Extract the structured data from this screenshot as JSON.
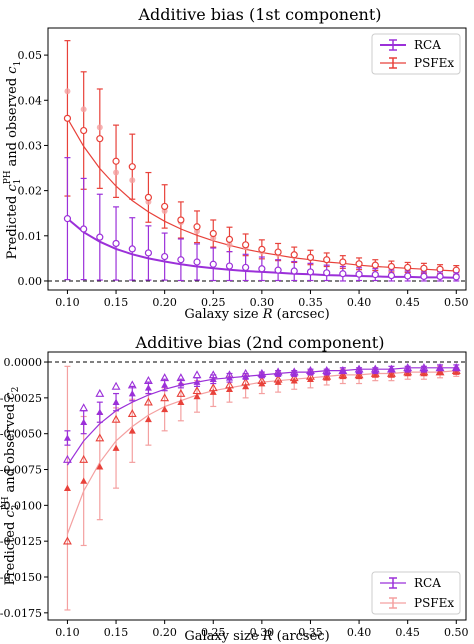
{
  "chart_data": [
    {
      "type": "scatter",
      "title": "Additive bias (1st component)",
      "xlabel": "Galaxy size R (arcsec)",
      "ylabel": "Predicted c1PH and observed c1",
      "xlim": [
        0.08,
        0.51
      ],
      "ylim": [
        -0.002,
        0.056
      ],
      "xticks": [
        "0.10",
        "0.15",
        "0.20",
        "0.25",
        "0.30",
        "0.35",
        "0.40",
        "0.45",
        "0.50"
      ],
      "yticks": [
        "0.00",
        "0.01",
        "0.02",
        "0.03",
        "0.04",
        "0.05"
      ],
      "legend": {
        "position": "top-right",
        "entries": [
          "RCA",
          "PSFEx"
        ]
      },
      "x": [
        0.1,
        0.1167,
        0.1333,
        0.15,
        0.1667,
        0.1833,
        0.2,
        0.2167,
        0.2333,
        0.25,
        0.2667,
        0.2833,
        0.3,
        0.3167,
        0.3333,
        0.35,
        0.3667,
        0.3833,
        0.4,
        0.4167,
        0.4333,
        0.45,
        0.4667,
        0.4833,
        0.5
      ],
      "series": [
        {
          "name": "RCA",
          "color": "#9b30d9",
          "predicted": [
            0.0138,
            0.0115,
            0.0097,
            0.0083,
            0.0071,
            0.0062,
            0.0054,
            0.0047,
            0.0042,
            0.0037,
            0.0033,
            0.003,
            0.0027,
            0.0024,
            0.0022,
            0.002,
            0.0018,
            0.0016,
            0.0015,
            0.0014,
            0.0012,
            0.0011,
            0.001,
            0.001,
            0.0009
          ],
          "error": [
            0.0135,
            0.0112,
            0.0095,
            0.0081,
            0.0069,
            0.006,
            0.0052,
            0.0046,
            0.004,
            0.0036,
            0.0032,
            0.0029,
            0.0026,
            0.0023,
            0.0021,
            0.0019,
            0.0017,
            0.0016,
            0.0014,
            0.0013,
            0.0012,
            0.0011,
            0.001,
            0.001,
            0.0009
          ],
          "observed": [
            0.004,
            0.0061,
            0.0063,
            0.0058,
            0.0042,
            0.004,
            0.0038,
            0.0033,
            0.0028,
            0.0026,
            0.0023,
            0.0022,
            0.002,
            0.0018,
            0.0017,
            0.0015,
            0.0014,
            0.0013,
            0.0012,
            0.0011,
            0.0011,
            0.001,
            0.0009,
            0.0009,
            0.0008
          ],
          "fit": [
            0.0138,
            0.0108,
            0.0087,
            0.0071,
            0.0059,
            0.005,
            0.0043,
            0.0037,
            0.0032,
            0.0028,
            0.0025,
            0.0022,
            0.002,
            0.0018,
            0.0016,
            0.0015,
            0.0013,
            0.0012,
            0.0011,
            0.001,
            0.0009,
            0.0009,
            0.0008,
            0.0008,
            0.0007
          ]
        },
        {
          "name": "PSFEx",
          "color": "#e8413a",
          "light_color": "#f4a0a0",
          "predicted": [
            0.036,
            0.0333,
            0.0315,
            0.0265,
            0.0253,
            0.0185,
            0.0165,
            0.0135,
            0.012,
            0.0105,
            0.0092,
            0.008,
            0.007,
            0.0064,
            0.0058,
            0.0052,
            0.0047,
            0.0042,
            0.0038,
            0.0035,
            0.0032,
            0.003,
            0.0028,
            0.0026,
            0.0024
          ],
          "error": [
            0.0172,
            0.013,
            0.011,
            0.008,
            0.0072,
            0.0055,
            0.0048,
            0.004,
            0.0035,
            0.003,
            0.0027,
            0.0024,
            0.0021,
            0.0019,
            0.0017,
            0.0016,
            0.0015,
            0.0014,
            0.0013,
            0.0012,
            0.0012,
            0.0011,
            0.0011,
            0.001,
            0.001
          ],
          "observed": [
            0.042,
            0.038,
            0.034,
            0.024,
            0.0223,
            0.0175,
            0.0155,
            0.013,
            0.011,
            0.0095,
            0.008,
            0.0075,
            0.0065,
            0.006,
            0.0055,
            0.005,
            0.0045,
            0.004,
            0.0035,
            0.0032,
            0.003,
            0.0028,
            0.0026,
            0.0025,
            0.0024
          ],
          "fit": [
            0.036,
            0.0298,
            0.0249,
            0.021,
            0.0178,
            0.0153,
            0.0132,
            0.0115,
            0.0101,
            0.0089,
            0.0079,
            0.007,
            0.0063,
            0.0057,
            0.0051,
            0.0047,
            0.0042,
            0.0039,
            0.0035,
            0.0032,
            0.003,
            0.0028,
            0.0026,
            0.0024,
            0.0022
          ]
        }
      ]
    },
    {
      "type": "scatter",
      "title": "Additive bias (2nd component)",
      "xlabel": "Galaxy size R (arcsec)",
      "ylabel": "Predicted c2PH and observed c2",
      "xlim": [
        0.08,
        0.51
      ],
      "ylim": [
        -0.018,
        0.0007
      ],
      "xticks": [
        "0.10",
        "0.15",
        "0.20",
        "0.25",
        "0.30",
        "0.35",
        "0.40",
        "0.45",
        "0.50"
      ],
      "yticks": [
        "0.0000",
        "-0.0025",
        "-0.0050",
        "-0.0075",
        "-0.0100",
        "-0.0125",
        "-0.0150",
        "-0.0175"
      ],
      "legend": {
        "position": "bottom-right",
        "entries": [
          "RCA",
          "PSFEx"
        ]
      },
      "x": [
        0.1,
        0.1167,
        0.1333,
        0.15,
        0.1667,
        0.1833,
        0.2,
        0.2167,
        0.2333,
        0.25,
        0.2667,
        0.2833,
        0.3,
        0.3167,
        0.3333,
        0.35,
        0.3667,
        0.3833,
        0.4,
        0.4167,
        0.4333,
        0.45,
        0.4667,
        0.4833,
        0.5
      ],
      "series": [
        {
          "name": "RCA",
          "color": "#9b30d9",
          "predicted": [
            -0.0053,
            -0.0042,
            -0.0035,
            -0.0028,
            -0.0022,
            -0.0018,
            -0.0016,
            -0.0015,
            -0.0014,
            -0.0012,
            -0.0011,
            -0.001,
            -0.0009,
            -0.0008,
            -0.0008,
            -0.0007,
            -0.0007,
            -0.0006,
            -0.0006,
            -0.0006,
            -0.0005,
            -0.0005,
            -0.0005,
            -0.0004,
            -0.0004
          ],
          "error": [
            0.0005,
            0.0008,
            0.0007,
            0.0006,
            0.0005,
            0.0004,
            0.0004,
            0.0003,
            0.0003,
            0.0003,
            0.0003,
            0.0002,
            0.0002,
            0.0002,
            0.0002,
            0.0002,
            0.0002,
            0.0002,
            0.0002,
            0.0002,
            0.0002,
            0.0002,
            0.0002,
            0.0002,
            0.0002
          ],
          "observed": [
            -0.0068,
            -0.0032,
            -0.0022,
            -0.0017,
            -0.0016,
            -0.0013,
            -0.0011,
            -0.0011,
            -0.0009,
            -0.0009,
            -0.0009,
            -0.0008,
            -0.0008,
            -0.0007,
            -0.0007,
            -0.0006,
            -0.0006,
            -0.0006,
            -0.0005,
            -0.0005,
            -0.0005,
            -0.0004,
            -0.0004,
            -0.0004,
            -0.0004
          ],
          "fit": [
            -0.0072,
            -0.0055,
            -0.0043,
            -0.0034,
            -0.0028,
            -0.0023,
            -0.0019,
            -0.0016,
            -0.0014,
            -0.0012,
            -0.0011,
            -0.001,
            -0.0009,
            -0.0008,
            -0.0007,
            -0.0007,
            -0.0006,
            -0.0006,
            -0.0005,
            -0.0005,
            -0.0005,
            -0.0004,
            -0.0004,
            -0.0004,
            -0.0004
          ]
        },
        {
          "name": "PSFEx",
          "color": "#e8413a",
          "light_color": "#f4a0a0",
          "predicted": [
            -0.0088,
            -0.0083,
            -0.0073,
            -0.006,
            -0.0048,
            -0.004,
            -0.0033,
            -0.0028,
            -0.0024,
            -0.0021,
            -0.0019,
            -0.0017,
            -0.0015,
            -0.0014,
            -0.0013,
            -0.0012,
            -0.0011,
            -0.001,
            -0.001,
            -0.0009,
            -0.0009,
            -0.0008,
            -0.0008,
            -0.0007,
            -0.0007
          ],
          "error": [
            0.0085,
            0.0045,
            0.0037,
            0.0028,
            0.0022,
            0.0018,
            0.0015,
            0.0013,
            0.0011,
            0.001,
            0.0009,
            0.0008,
            0.0007,
            0.0007,
            0.0006,
            0.0006,
            0.0005,
            0.0005,
            0.0005,
            0.0004,
            0.0004,
            0.0004,
            0.0004,
            0.0004,
            0.0003
          ],
          "observed": [
            -0.0125,
            -0.0068,
            -0.0053,
            -0.004,
            -0.0036,
            -0.0028,
            -0.0025,
            -0.0022,
            -0.002,
            -0.0018,
            -0.0016,
            -0.0014,
            -0.0013,
            -0.0012,
            -0.0011,
            -0.001,
            -0.001,
            -0.0009,
            -0.0009,
            -0.0008,
            -0.0008,
            -0.0007,
            -0.0007,
            -0.0007,
            -0.0006
          ],
          "fit": [
            -0.012,
            -0.009,
            -0.007,
            -0.0055,
            -0.0045,
            -0.0037,
            -0.0031,
            -0.0027,
            -0.0023,
            -0.002,
            -0.0018,
            -0.0016,
            -0.0014,
            -0.0013,
            -0.0012,
            -0.0011,
            -0.001,
            -0.0009,
            -0.0009,
            -0.0008,
            -0.0008,
            -0.0007,
            -0.0007,
            -0.0007,
            -0.0006
          ]
        }
      ]
    }
  ]
}
